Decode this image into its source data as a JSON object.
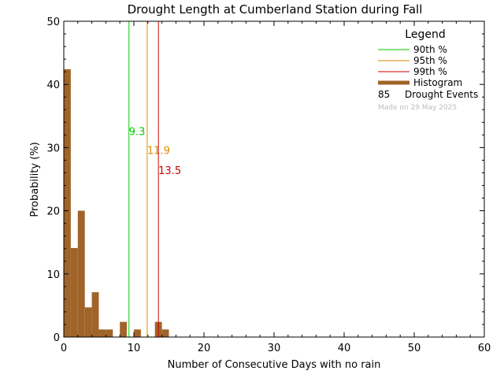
{
  "chart_data": {
    "type": "bar",
    "title": "Drought Length at Cumberland Station during Fall",
    "xlabel": "Number of Consecutive Days with no rain",
    "ylabel": "Probability (%)",
    "xlim": [
      0,
      60
    ],
    "ylim": [
      0,
      50
    ],
    "xticks": [
      "0",
      "10",
      "20",
      "30",
      "40",
      "50",
      "60"
    ],
    "yticks": [
      "0",
      "10",
      "20",
      "30",
      "40",
      "50"
    ],
    "bin_width": 1,
    "histogram": [
      {
        "x": 0,
        "value": 42.4
      },
      {
        "x": 1,
        "value": 14.1
      },
      {
        "x": 2,
        "value": 20.0
      },
      {
        "x": 3,
        "value": 4.7
      },
      {
        "x": 4,
        "value": 7.1
      },
      {
        "x": 5,
        "value": 1.2
      },
      {
        "x": 6,
        "value": 1.2
      },
      {
        "x": 7,
        "value": 0
      },
      {
        "x": 8,
        "value": 2.4
      },
      {
        "x": 9,
        "value": 0
      },
      {
        "x": 10,
        "value": 1.2
      },
      {
        "x": 11,
        "value": 0
      },
      {
        "x": 12,
        "value": 0
      },
      {
        "x": 13,
        "value": 2.4
      },
      {
        "x": 14,
        "value": 1.2
      }
    ],
    "percentiles": [
      {
        "name": "90th %",
        "value": 9.3,
        "label": "9.3",
        "label_y": 32,
        "color": "#00cc00"
      },
      {
        "name": "95th %",
        "value": 11.9,
        "label": "11.9",
        "label_y": 29,
        "color": "#e08a00"
      },
      {
        "name": "99th %",
        "value": 13.5,
        "label": "13.5",
        "label_y": 25.8,
        "color": "#cc0000"
      }
    ],
    "histogram_color": "#a0642a",
    "legend": {
      "title": "Legend",
      "entries": [
        "90th %",
        "95th %",
        "99th %",
        "Histogram"
      ],
      "count": "85",
      "count_label": "Drought Events",
      "note": "Made on 29 May 2025",
      "placement": "top-right"
    },
    "grid": false
  }
}
